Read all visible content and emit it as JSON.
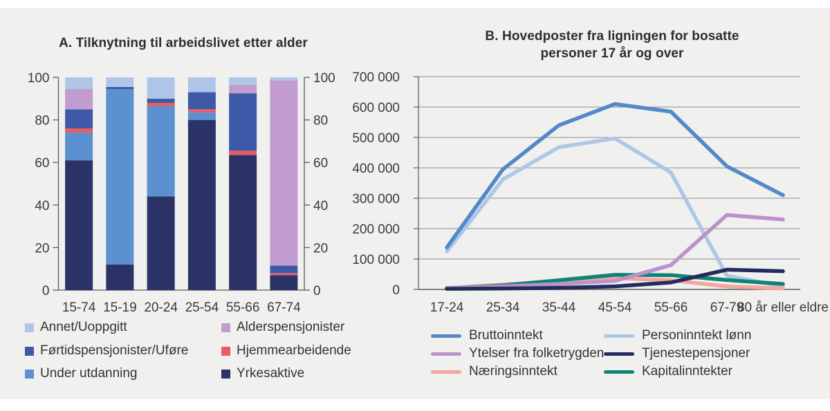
{
  "page": {
    "background": "#ffffff",
    "panel_color": "#f0f0ef",
    "gridline_color": "#8d8d8d",
    "axis_color": "#5a5a5a",
    "label_color": "#3a3a3a"
  },
  "chart_data": [
    {
      "type": "bar",
      "variant": "stacked-percent",
      "title": "A. Tilknytning til arbeidslivet etter alder",
      "categories": [
        "15-74",
        "15-19",
        "20-24",
        "25-54",
        "55-66",
        "67-74"
      ],
      "y_ticks": [
        0,
        20,
        40,
        60,
        80,
        100
      ],
      "ylim": [
        0,
        100
      ],
      "dual_axis": true,
      "series": [
        {
          "name": "Yrkesaktive",
          "color": "#2b3366",
          "values": [
            61,
            12,
            44,
            80,
            63.5,
            7
          ]
        },
        {
          "name": "Under utdanning",
          "color": "#5a91ce",
          "values": [
            13,
            82.5,
            42.5,
            3.5,
            0,
            0
          ]
        },
        {
          "name": "Hjemmearbeidende",
          "color": "#e85d62",
          "values": [
            2,
            0,
            1.5,
            1.5,
            2,
            1
          ]
        },
        {
          "name": "Førtidspensjonister/Uføre",
          "color": "#3d59a8",
          "values": [
            9,
            1,
            2,
            8,
            27,
            3.5
          ]
        },
        {
          "name": "Alderspensjonister",
          "color": "#c29cce",
          "values": [
            9.5,
            0,
            0,
            0,
            4,
            87
          ]
        },
        {
          "name": "Annet/Uoppgitt",
          "color": "#aec5e8",
          "values": [
            5.5,
            4.5,
            10,
            7,
            3.5,
            1.5
          ]
        }
      ],
      "legend_columns": [
        [
          "Annet/Uoppgitt",
          "Førtidspensjonister/Uføre",
          "Under utdanning"
        ],
        [
          "Alderspensjonister",
          "Hjemmearbeidende",
          "Yrkesaktive"
        ]
      ]
    },
    {
      "type": "line",
      "title_lines": [
        "B. Hovedposter fra ligningen for bosatte",
        "personer 17 år og over"
      ],
      "categories": [
        "17-24",
        "25-34",
        "35-44",
        "45-54",
        "55-66",
        "67-79",
        "80 år eller eldre"
      ],
      "y_ticks": [
        0,
        100000,
        200000,
        300000,
        400000,
        500000,
        600000,
        700000
      ],
      "y_tick_labels": [
        "0",
        "100 000",
        "200 000",
        "300 000",
        "400 000",
        "500 000",
        "600 000",
        "700 000"
      ],
      "ylim": [
        0,
        700000
      ],
      "grid": true,
      "series": [
        {
          "name": "Personinntekt lønn",
          "color": "#aec6e8",
          "values": [
            125000,
            362000,
            468000,
            497000,
            385000,
            45000,
            10000
          ]
        },
        {
          "name": "Næringsinntekt",
          "color": "#f4a59e",
          "values": [
            4000,
            16000,
            28000,
            37000,
            30000,
            10000,
            3000
          ]
        },
        {
          "name": "Kapitalinntekter",
          "color": "#0f8476",
          "values": [
            4000,
            13000,
            30000,
            48000,
            47000,
            31000,
            18000
          ]
        },
        {
          "name": "Ytelser fra folketrygden",
          "color": "#bb92ca",
          "values": [
            5000,
            10000,
            18000,
            28000,
            80000,
            245000,
            230000
          ]
        },
        {
          "name": "Tjenestepensjoner",
          "color": "#232c5c",
          "values": [
            2000,
            3000,
            5000,
            10000,
            23000,
            65000,
            60000
          ]
        },
        {
          "name": "Bruttoinntekt",
          "color": "#5389c8",
          "values": [
            138000,
            395000,
            540000,
            610000,
            585000,
            405000,
            310000
          ]
        }
      ],
      "legend_columns": [
        [
          "Bruttoinntekt",
          "Ytelser fra folketrygden",
          "Næringsinntekt"
        ],
        [
          "Personinntekt lønn",
          "Tjenestepensjoner",
          "Kapitalinntekter"
        ]
      ]
    }
  ]
}
